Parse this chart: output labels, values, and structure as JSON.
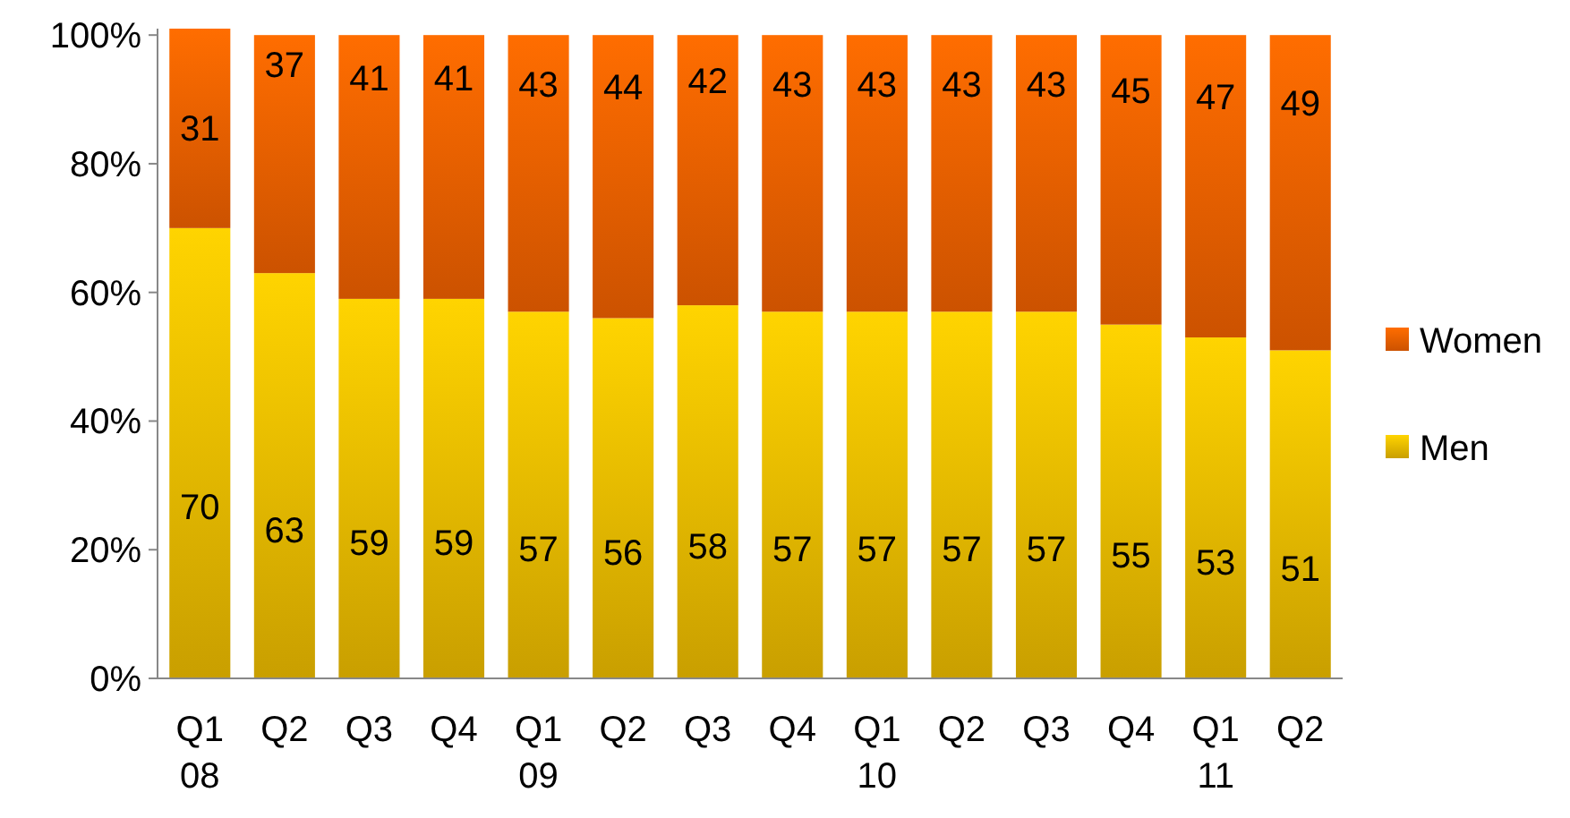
{
  "chart_data": {
    "type": "bar",
    "stacked": true,
    "categories": [
      "Q1\n08",
      "Q2",
      "Q3",
      "Q4",
      "Q1\n09",
      "Q2",
      "Q3",
      "Q4",
      "Q1\n10",
      "Q2",
      "Q3",
      "Q4",
      "Q1\n11",
      "Q2"
    ],
    "series": [
      {
        "name": "Men",
        "color": "#ecbb00",
        "values": [
          70,
          63,
          59,
          59,
          57,
          56,
          58,
          57,
          57,
          57,
          57,
          55,
          53,
          51
        ]
      },
      {
        "name": "Women",
        "color": "#f06000",
        "values": [
          31,
          37,
          41,
          41,
          43,
          44,
          42,
          43,
          43,
          43,
          43,
          45,
          47,
          49
        ]
      }
    ],
    "ylim": [
      0,
      101
    ],
    "yticks": [
      {
        "value": 0,
        "label": "0%"
      },
      {
        "value": 20,
        "label": "20%"
      },
      {
        "value": 40,
        "label": "40%"
      },
      {
        "value": 60,
        "label": "60%"
      },
      {
        "value": 80,
        "label": "80%"
      },
      {
        "value": 100,
        "label": "100%"
      }
    ],
    "data_labels": true,
    "legend": "right",
    "grid": false
  }
}
